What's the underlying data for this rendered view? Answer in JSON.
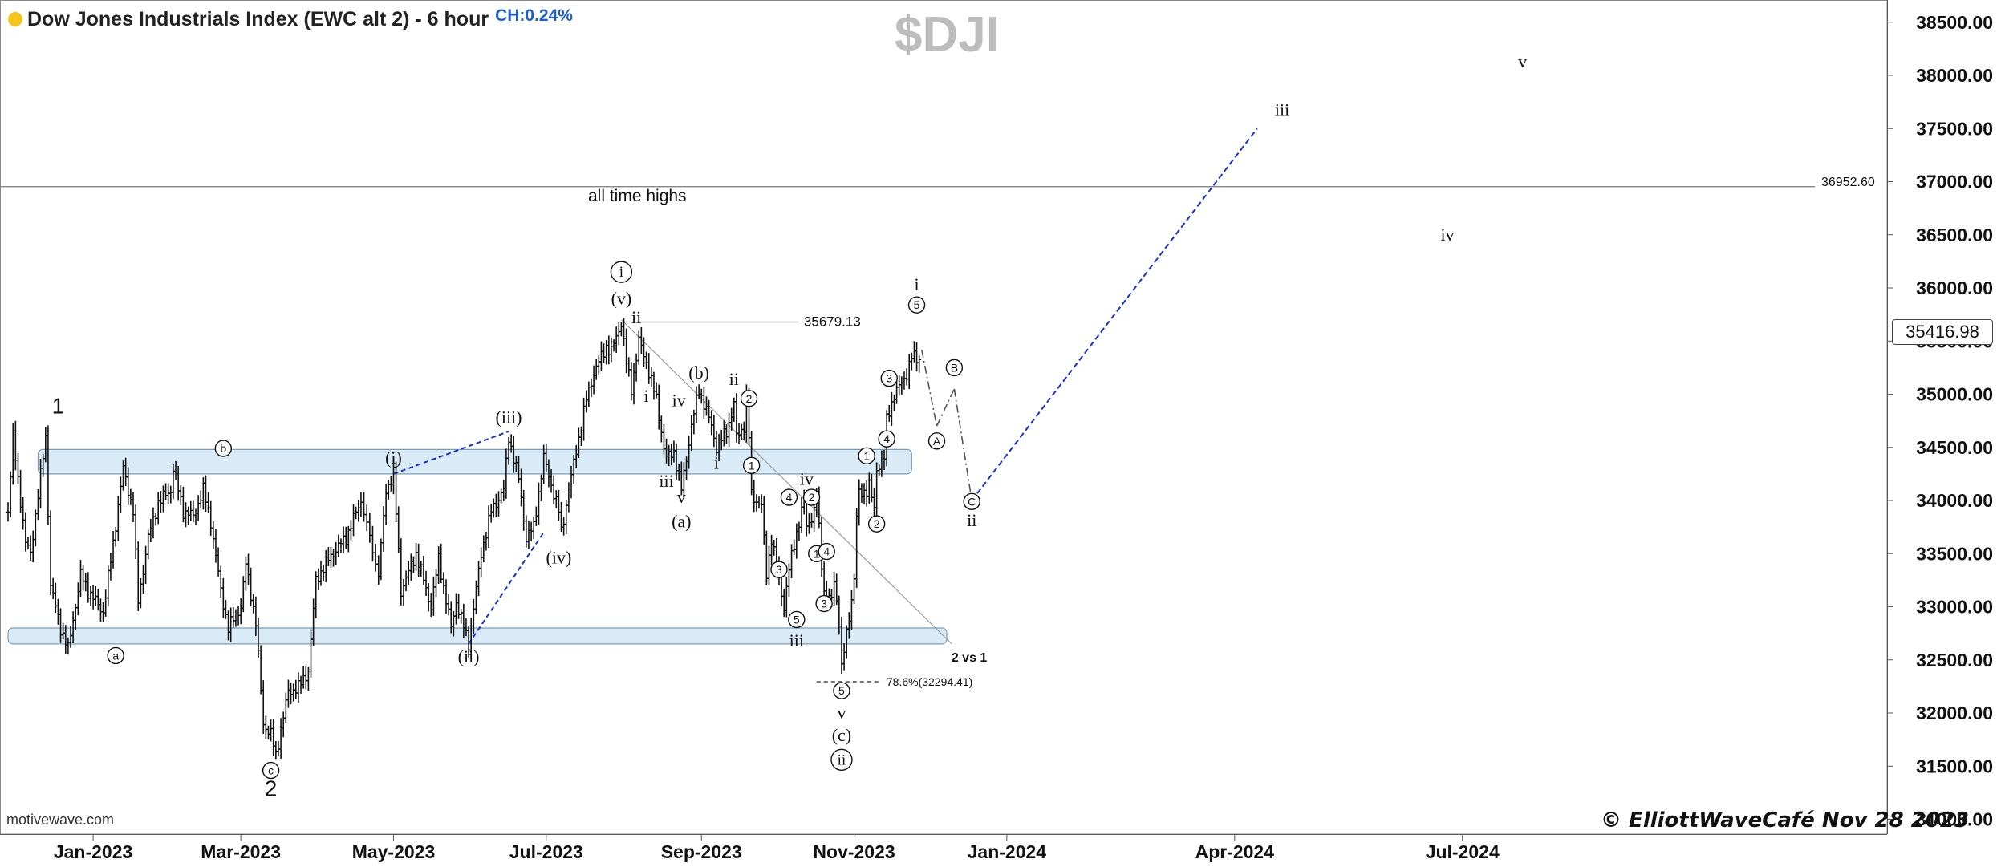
{
  "header": {
    "title": "Dow Jones Industrials Index (EWC alt 2) - 6 hour",
    "change": "CH:0.24%",
    "symbol": "$DJI"
  },
  "footer": {
    "watermark": "motivewave.com",
    "copyright": "© ElliottWaveCafé Nov 28 2023"
  },
  "colors": {
    "price_bars": "#111111",
    "zone_fill": "#cfe6f5",
    "zone_stroke": "#7a9cb8",
    "projection": "#1a2fd6",
    "path": "#555555",
    "status_dot": "#f5c518"
  },
  "chart_data": {
    "type": "line",
    "title": "Dow Jones Industrials Index (EWC alt 2) - 6 hour",
    "symbol": "$DJI",
    "y_axis": {
      "ticks": [
        "38500.00",
        "38000.00",
        "37500.00",
        "37000.00",
        "36500.00",
        "36000.00",
        "35500.00",
        "35000.00",
        "34500.00",
        "34000.00",
        "33500.00",
        "33000.00",
        "32500.00",
        "32000.00",
        "31500.00",
        "31000.00"
      ],
      "range": [
        30800,
        38800
      ]
    },
    "x_axis": {
      "ticks": [
        "Jan-2023",
        "Mar-2023",
        "May-2023",
        "Jul-2023",
        "Sep-2023",
        "Nov-2023",
        "Jan-2024",
        "Apr-2024",
        "Jul-2024"
      ]
    },
    "series": [
      {
        "values": [
          [
            "2022-11-28",
            33900
          ],
          [
            "2022-11-30",
            34590
          ],
          [
            "2022-12-01",
            34400
          ],
          [
            "2022-12-05",
            33600
          ],
          [
            "2022-12-07",
            33500
          ],
          [
            "2022-12-13",
            34600
          ],
          [
            "2022-12-15",
            33200
          ],
          [
            "2022-12-19",
            32800
          ],
          [
            "2022-12-22",
            32600
          ],
          [
            "2022-12-27",
            33300
          ],
          [
            "2022-12-30",
            33150
          ],
          [
            "2023-01-05",
            32950
          ],
          [
            "2023-01-09",
            33600
          ],
          [
            "2023-01-13",
            34300
          ],
          [
            "2023-01-17",
            33900
          ],
          [
            "2023-01-19",
            33050
          ],
          [
            "2023-01-23",
            33650
          ],
          [
            "2023-01-27",
            33980
          ],
          [
            "2023-02-01",
            34100
          ],
          [
            "2023-02-02",
            34300
          ],
          [
            "2023-02-06",
            33900
          ],
          [
            "2023-02-10",
            33850
          ],
          [
            "2023-02-14",
            34100
          ],
          [
            "2023-02-17",
            33800
          ],
          [
            "2023-02-21",
            33150
          ],
          [
            "2023-02-24",
            32800
          ],
          [
            "2023-03-01",
            33000
          ],
          [
            "2023-03-03",
            33400
          ],
          [
            "2023-03-07",
            32850
          ],
          [
            "2023-03-10",
            31900
          ],
          [
            "2023-03-13",
            31800
          ],
          [
            "2023-03-15",
            31600
          ],
          [
            "2023-03-17",
            31850
          ],
          [
            "2023-03-20",
            32200
          ],
          [
            "2023-03-24",
            32240
          ],
          [
            "2023-03-28",
            32400
          ],
          [
            "2023-03-31",
            33250
          ],
          [
            "2023-04-06",
            33480
          ],
          [
            "2023-04-12",
            33650
          ],
          [
            "2023-04-18",
            34000
          ],
          [
            "2023-04-25",
            33300
          ],
          [
            "2023-04-28",
            34100
          ],
          [
            "2023-05-01",
            34250
          ],
          [
            "2023-05-04",
            33150
          ],
          [
            "2023-05-10",
            33500
          ],
          [
            "2023-05-16",
            33000
          ],
          [
            "2023-05-19",
            33450
          ],
          [
            "2023-05-24",
            32800
          ],
          [
            "2023-05-26",
            33050
          ],
          [
            "2023-05-31",
            32650
          ],
          [
            "2023-06-05",
            33500
          ],
          [
            "2023-06-09",
            33900
          ],
          [
            "2023-06-14",
            34100
          ],
          [
            "2023-06-16",
            34600
          ],
          [
            "2023-06-20",
            34200
          ],
          [
            "2023-06-23",
            33650
          ],
          [
            "2023-06-26",
            33750
          ],
          [
            "2023-06-30",
            34400
          ],
          [
            "2023-07-06",
            33900
          ],
          [
            "2023-07-07",
            33700
          ],
          [
            "2023-07-12",
            34350
          ],
          [
            "2023-07-17",
            34950
          ],
          [
            "2023-07-20",
            35200
          ],
          [
            "2023-07-25",
            35450
          ],
          [
            "2023-07-27",
            35400
          ],
          [
            "2023-07-31",
            35679
          ],
          [
            "2023-08-02",
            35300
          ],
          [
            "2023-08-04",
            35050
          ],
          [
            "2023-08-07",
            35500
          ],
          [
            "2023-08-10",
            35300
          ],
          [
            "2023-08-14",
            34950
          ],
          [
            "2023-08-17",
            34500
          ],
          [
            "2023-08-18",
            34400
          ],
          [
            "2023-08-21",
            34460
          ],
          [
            "2023-08-24",
            34100
          ],
          [
            "2023-08-28",
            34700
          ],
          [
            "2023-08-31",
            35050
          ],
          [
            "2023-09-05",
            34700
          ],
          [
            "2023-09-07",
            34500
          ],
          [
            "2023-09-11",
            34650
          ],
          [
            "2023-09-14",
            34900
          ],
          [
            "2023-09-15",
            34600
          ],
          [
            "2023-09-18",
            34700
          ],
          [
            "2023-09-19",
            34950
          ],
          [
            "2023-09-20",
            34600
          ],
          [
            "2023-09-21",
            34050
          ],
          [
            "2023-09-25",
            33950
          ],
          [
            "2023-09-27",
            33300
          ],
          [
            "2023-09-29",
            33650
          ],
          [
            "2023-10-02",
            33250
          ],
          [
            "2023-10-04",
            33000
          ],
          [
            "2023-10-06",
            33350
          ],
          [
            "2023-10-09",
            33700
          ],
          [
            "2023-10-11",
            33900
          ],
          [
            "2023-10-12",
            34000
          ],
          [
            "2023-10-13",
            33750
          ],
          [
            "2023-10-16",
            33900
          ],
          [
            "2023-10-17",
            34050
          ],
          [
            "2023-10-19",
            33400
          ],
          [
            "2023-10-20",
            33150
          ],
          [
            "2023-10-23",
            33050
          ],
          [
            "2023-10-24",
            33250
          ],
          [
            "2023-10-25",
            33050
          ],
          [
            "2023-10-26",
            32880
          ],
          [
            "2023-10-27",
            32420
          ],
          [
            "2023-10-30",
            32900
          ],
          [
            "2023-11-01",
            33270
          ],
          [
            "2023-11-02",
            33850
          ],
          [
            "2023-11-03",
            34050
          ],
          [
            "2023-11-06",
            34100
          ],
          [
            "2023-11-07",
            34150
          ],
          [
            "2023-11-09",
            33900
          ],
          [
            "2023-11-10",
            34300
          ],
          [
            "2023-11-13",
            34400
          ],
          [
            "2023-11-14",
            34750
          ],
          [
            "2023-11-16",
            34920
          ],
          [
            "2023-11-17",
            35000
          ],
          [
            "2023-11-20",
            35100
          ],
          [
            "2023-11-22",
            35200
          ],
          [
            "2023-11-24",
            35350
          ],
          [
            "2023-11-27",
            35330
          ],
          [
            "2023-11-28",
            35417
          ]
        ]
      }
    ],
    "projection": [
      [
        "2023-11-28",
        35417
      ],
      [
        "2023-12-04",
        34700
      ],
      [
        "2023-12-11",
        35050
      ],
      [
        "2023-12-18",
        34000
      ],
      [
        "2024-04-10",
        37500
      ]
    ],
    "lines": [
      {
        "kind": "horizontal",
        "y": 36952.6,
        "label": "all time highs",
        "value_label": "36952.60"
      },
      {
        "kind": "horizontal-segment",
        "y": 35679.13,
        "label": "35679.13",
        "from": "2023-07-31",
        "to": "2023-10-10"
      },
      {
        "kind": "horizontal-segment",
        "y": 32294.41,
        "label": "78.6%(32294.41)",
        "from": "2023-10-17",
        "to": "2023-11-12",
        "dashed": true
      },
      {
        "kind": "trendline",
        "from": [
          "2023-07-31",
          35700
        ],
        "to": [
          "2023-12-10",
          32650
        ]
      },
      {
        "kind": "dashed-blue",
        "from": [
          "2023-05-01",
          34250
        ],
        "to": [
          "2023-06-16",
          34650
        ]
      },
      {
        "kind": "dashed-blue",
        "from": [
          "2023-05-31",
          32650
        ],
        "to": [
          "2023-06-30",
          33700
        ]
      }
    ],
    "zones": [
      {
        "from": "2022-12-10",
        "to": "2023-11-24",
        "low": 34250,
        "high": 34480
      },
      {
        "from": "2022-11-28",
        "to": "2023-12-08",
        "low": 32650,
        "high": 32800
      }
    ],
    "last_price": "35416.98",
    "annotations": [
      {
        "text": "1",
        "x": "2022-12-18",
        "y": 34880,
        "style": "plain"
      },
      {
        "text": "a",
        "x": "2023-01-10",
        "y": 32540,
        "style": "circle"
      },
      {
        "text": "b",
        "x": "2023-02-22",
        "y": 34490,
        "style": "circle"
      },
      {
        "text": "c",
        "x": "2023-03-13",
        "y": 31460,
        "style": "circle"
      },
      {
        "text": "2",
        "x": "2023-03-13",
        "y": 31280,
        "style": "plain"
      },
      {
        "text": "(i)",
        "x": "2023-05-01",
        "y": 34400,
        "style": "serif"
      },
      {
        "text": "(ii)",
        "x": "2023-05-31",
        "y": 32530,
        "style": "serif"
      },
      {
        "text": "(iii)",
        "x": "2023-06-16",
        "y": 34780,
        "style": "serif"
      },
      {
        "text": "(iv)",
        "x": "2023-07-06",
        "y": 33460,
        "style": "serif"
      },
      {
        "text": "(v)",
        "x": "2023-07-31",
        "y": 35900,
        "style": "serif"
      },
      {
        "text": "i",
        "x": "2023-07-31",
        "y": 36150,
        "style": "circle-serif"
      },
      {
        "text": "ii",
        "x": "2023-08-06",
        "y": 35720,
        "style": "serif"
      },
      {
        "text": "i",
        "x": "2023-08-10",
        "y": 34980,
        "style": "serif"
      },
      {
        "text": "iii",
        "x": "2023-08-18",
        "y": 34180,
        "style": "serif"
      },
      {
        "text": "iv",
        "x": "2023-08-23",
        "y": 34940,
        "style": "serif"
      },
      {
        "text": "v",
        "x": "2023-08-24",
        "y": 34030,
        "style": "serif"
      },
      {
        "text": "(a)",
        "x": "2023-08-24",
        "y": 33800,
        "style": "serif"
      },
      {
        "text": "(b)",
        "x": "2023-08-31",
        "y": 35200,
        "style": "serif"
      },
      {
        "text": "i",
        "x": "2023-09-07",
        "y": 34350,
        "style": "serif"
      },
      {
        "text": "ii",
        "x": "2023-09-14",
        "y": 35140,
        "style": "serif"
      },
      {
        "text": "2",
        "x": "2023-09-20",
        "y": 34960,
        "style": "circle"
      },
      {
        "text": "1",
        "x": "2023-09-21",
        "y": 34330,
        "style": "circle"
      },
      {
        "text": "4",
        "x": "2023-10-06",
        "y": 34030,
        "style": "circle"
      },
      {
        "text": "3",
        "x": "2023-10-02",
        "y": 33350,
        "style": "circle"
      },
      {
        "text": "5",
        "x": "2023-10-09",
        "y": 32880,
        "style": "circle"
      },
      {
        "text": "iii",
        "x": "2023-10-09",
        "y": 32680,
        "style": "serif"
      },
      {
        "text": "iv",
        "x": "2023-10-13",
        "y": 34200,
        "style": "serif"
      },
      {
        "text": "2",
        "x": "2023-10-15",
        "y": 34030,
        "style": "circle"
      },
      {
        "text": "1",
        "x": "2023-10-17",
        "y": 33500,
        "style": "circle"
      },
      {
        "text": "4",
        "x": "2023-10-21",
        "y": 33520,
        "style": "circle"
      },
      {
        "text": "3",
        "x": "2023-10-20",
        "y": 33030,
        "style": "circle"
      },
      {
        "text": "5",
        "x": "2023-10-27",
        "y": 32210,
        "style": "circle"
      },
      {
        "text": "v",
        "x": "2023-10-27",
        "y": 32000,
        "style": "serif"
      },
      {
        "text": "(c)",
        "x": "2023-10-27",
        "y": 31790,
        "style": "serif"
      },
      {
        "text": "ii",
        "x": "2023-10-27",
        "y": 31560,
        "style": "circle-serif"
      },
      {
        "text": "1",
        "x": "2023-11-06",
        "y": 34420,
        "style": "circle"
      },
      {
        "text": "2",
        "x": "2023-11-10",
        "y": 33780,
        "style": "circle"
      },
      {
        "text": "4",
        "x": "2023-11-14",
        "y": 34580,
        "style": "circle"
      },
      {
        "text": "3",
        "x": "2023-11-15",
        "y": 35150,
        "style": "circle"
      },
      {
        "text": "5",
        "x": "2023-11-26",
        "y": 35840,
        "style": "circle"
      },
      {
        "text": "i",
        "x": "2023-11-26",
        "y": 36030,
        "style": "serif"
      },
      {
        "text": "A",
        "x": "2023-12-04",
        "y": 34560,
        "style": "circle"
      },
      {
        "text": "B",
        "x": "2023-12-11",
        "y": 35250,
        "style": "circle"
      },
      {
        "text": "C",
        "x": "2023-12-18",
        "y": 33990,
        "style": "circle"
      },
      {
        "text": "ii",
        "x": "2023-12-18",
        "y": 33810,
        "style": "serif"
      },
      {
        "text": "iii",
        "x": "2024-04-20",
        "y": 37670,
        "style": "serif"
      },
      {
        "text": "iv",
        "x": "2024-06-25",
        "y": 36500,
        "style": "serif"
      },
      {
        "text": "v",
        "x": "2024-07-25",
        "y": 38130,
        "style": "serif"
      },
      {
        "text": "2 vs 1",
        "x": "2023-12-17",
        "y": 32520,
        "style": "bold-small"
      }
    ]
  }
}
